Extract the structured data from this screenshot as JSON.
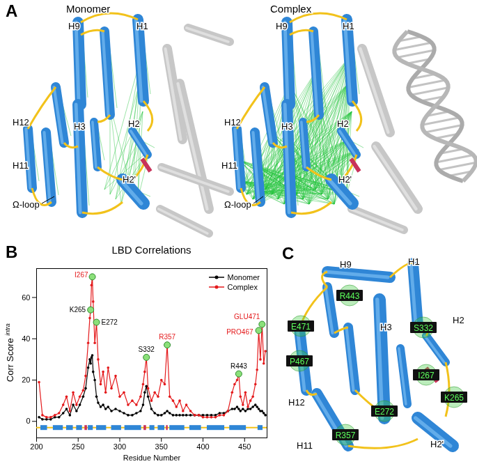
{
  "panel_A": {
    "label": "A",
    "titles": [
      "Monomer",
      "Complex"
    ],
    "monomer_labels": [
      "H1",
      "H9",
      "H12",
      "H3",
      "H2",
      "H11",
      "Ω-loop",
      "H2'"
    ],
    "complex_labels": [
      "H1",
      "H9",
      "H12",
      "H3",
      "H2",
      "H11",
      "Ω-loop",
      "H2'"
    ]
  },
  "chart_data": {
    "panel_label": "B",
    "type": "line",
    "title": "LBD Correlations",
    "xlabel": "Residue Number",
    "ylabel": "Corr Score",
    "ylabel_superscript": "intra",
    "x": [
      203,
      207,
      212,
      217,
      222,
      227,
      232,
      236,
      240,
      244,
      248,
      252,
      256,
      259,
      262,
      264,
      265,
      266,
      267,
      268,
      270,
      272,
      274,
      277,
      280,
      283,
      286,
      290,
      295,
      300,
      305,
      310,
      315,
      320,
      325,
      328,
      330,
      332,
      334,
      338,
      342,
      346,
      350,
      354,
      357,
      360,
      364,
      368,
      372,
      376,
      380,
      385,
      390,
      395,
      400,
      405,
      410,
      415,
      420,
      425,
      430,
      435,
      438,
      441,
      443,
      445,
      448,
      451,
      454,
      457,
      460,
      463,
      465,
      467,
      469,
      471,
      473,
      475
    ],
    "series": [
      {
        "name": "Monomer",
        "color": "#000000",
        "marker": "circle",
        "values": [
          2,
          1,
          1,
          1,
          2,
          2,
          4,
          6,
          3,
          8,
          5,
          8,
          12,
          16,
          26,
          30,
          28,
          31,
          32,
          24,
          20,
          12,
          9,
          7,
          8,
          6,
          7,
          5,
          6,
          5,
          4,
          3,
          3,
          4,
          5,
          8,
          14,
          17,
          12,
          6,
          4,
          3,
          3,
          4,
          5,
          4,
          3,
          3,
          3,
          3,
          3,
          3,
          3,
          3,
          3,
          3,
          3,
          3,
          4,
          4,
          5,
          6,
          6,
          7,
          6,
          5,
          6,
          5,
          6,
          6,
          7,
          8,
          7,
          6,
          5,
          5,
          4,
          3
        ]
      },
      {
        "name": "Complex",
        "color": "#e41a1c",
        "marker": "circle",
        "values": [
          19,
          3,
          2,
          2,
          3,
          4,
          8,
          12,
          5,
          14,
          8,
          12,
          15,
          22,
          38,
          50,
          54,
          66,
          70,
          58,
          38,
          48,
          30,
          18,
          24,
          14,
          26,
          16,
          22,
          12,
          14,
          8,
          10,
          8,
          12,
          18,
          24,
          31,
          16,
          10,
          14,
          12,
          20,
          18,
          37,
          12,
          10,
          7,
          10,
          5,
          8,
          5,
          3,
          3,
          2,
          2,
          2,
          2,
          3,
          3,
          5,
          14,
          18,
          20,
          23,
          12,
          8,
          14,
          7,
          10,
          12,
          18,
          25,
          44,
          30,
          47,
          28,
          34
        ]
      }
    ],
    "xlim": [
      200,
      477
    ],
    "xticks": [
      200,
      250,
      300,
      350,
      400,
      450
    ],
    "ylim": [
      -8,
      74
    ],
    "yticks": [
      0,
      20,
      40,
      60
    ],
    "grid": false,
    "legend": "top-right",
    "annotations": [
      {
        "text": "I267",
        "x": 267,
        "y": 70,
        "color": "#e41a1c"
      },
      {
        "text": "K265",
        "x": 265,
        "y": 54,
        "color": "#000000"
      },
      {
        "text": "E272",
        "x": 272,
        "y": 48,
        "color": "#000000"
      },
      {
        "text": "S332",
        "x": 332,
        "y": 31,
        "color": "#000000"
      },
      {
        "text": "R357",
        "x": 357,
        "y": 37,
        "color": "#e41a1c"
      },
      {
        "text": "R443",
        "x": 443,
        "y": 23,
        "color": "#000000"
      },
      {
        "text": "GLU471",
        "x": 471,
        "y": 47,
        "color": "#e41a1c"
      },
      {
        "text": "PRO467",
        "x": 467,
        "y": 44,
        "color": "#e41a1c"
      }
    ],
    "secondary_structure": {
      "y": -3,
      "helices": [
        [
          205,
          213
        ],
        [
          220,
          232
        ],
        [
          236,
          244
        ],
        [
          248,
          255
        ],
        [
          262,
          268
        ],
        [
          272,
          284
        ],
        [
          290,
          302
        ],
        [
          306,
          326
        ],
        [
          336,
          342
        ],
        [
          346,
          354
        ],
        [
          360,
          378
        ],
        [
          384,
          398
        ],
        [
          405,
          426
        ],
        [
          432,
          452
        ],
        [
          466,
          472
        ]
      ],
      "strands": [
        [
          258,
          261
        ],
        [
          329,
          332
        ],
        [
          356,
          358
        ]
      ]
    }
  },
  "panel_C": {
    "label": "C",
    "helix_labels": [
      "H9",
      "H1",
      "H2",
      "H3",
      "H12",
      "H11",
      "H2'"
    ],
    "residue_labels": [
      "E471",
      "R443",
      "S332",
      "P467",
      "I267",
      "K265",
      "E272",
      "R357"
    ]
  }
}
